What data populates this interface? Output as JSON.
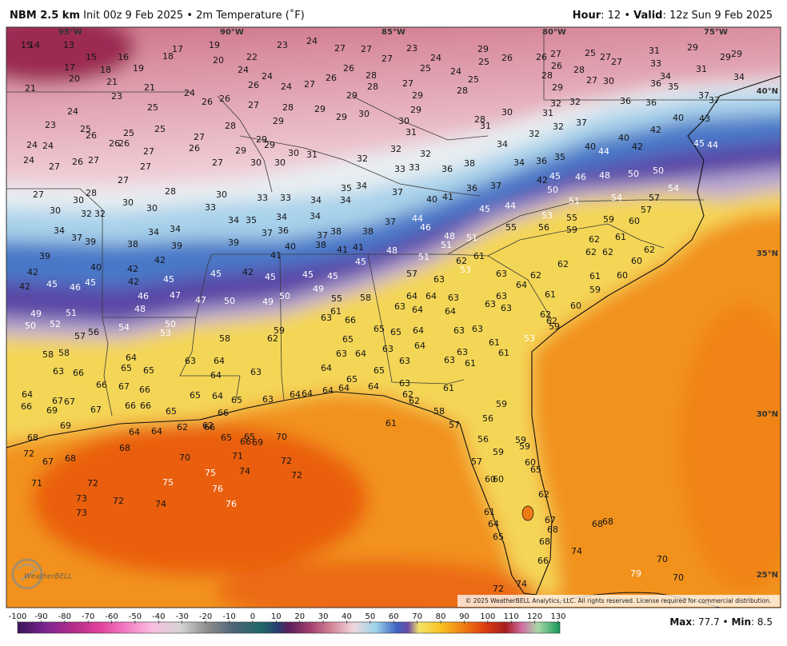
{
  "header": {
    "model": "NBM 2.5 km",
    "init": "Init 00z 9 Feb 2025",
    "separator": "•",
    "product": "2m Temperature (˚F)",
    "hour_label": "Hour",
    "hour": ": 12",
    "valid_label": "Valid",
    "valid": ": 12z Sun 9 Feb 2025"
  },
  "map": {
    "longitude_labels": [
      "95°W",
      "90°W",
      "85°W",
      "80°W",
      "75°W"
    ],
    "latitude_labels": [
      "40°N",
      "35°N",
      "30°N",
      "25°N"
    ],
    "temperatures": [
      15,
      14,
      13,
      15,
      16,
      19,
      18,
      17,
      19,
      20,
      22,
      23,
      24,
      27,
      27,
      27,
      23,
      24,
      25,
      24,
      25,
      29,
      25,
      26,
      26,
      27,
      26,
      25,
      27,
      27,
      31,
      33,
      29,
      29,
      29,
      31,
      17,
      20,
      18,
      21,
      21,
      23,
      25,
      24,
      26,
      26,
      24,
      24,
      26,
      24,
      27,
      26,
      26,
      28,
      28,
      27,
      29,
      28,
      28,
      30,
      28,
      28,
      27,
      30,
      29,
      32,
      32,
      31,
      36,
      36,
      34,
      35,
      36,
      37,
      37,
      34,
      21,
      24,
      23,
      25,
      26,
      26,
      25,
      25,
      26,
      27,
      26,
      27,
      28,
      27,
      28,
      29,
      29,
      29,
      29,
      30,
      30,
      29,
      31,
      31,
      32,
      32,
      37,
      24,
      24,
      24,
      27,
      26,
      27,
      27,
      27,
      29,
      29,
      29,
      30,
      31,
      30,
      30,
      27,
      32,
      32,
      32,
      33,
      33,
      36,
      38,
      34,
      34,
      36,
      35,
      40,
      44,
      40,
      42,
      42,
      40,
      43,
      45,
      44,
      27,
      30,
      28,
      30,
      30,
      28,
      30,
      33,
      33,
      33,
      34,
      35,
      34,
      34,
      37,
      40,
      41,
      36,
      37,
      42,
      45,
      46,
      48,
      50,
      50,
      54,
      57,
      54,
      51,
      50,
      30,
      32,
      32,
      34,
      37,
      39,
      38,
      34,
      39,
      34,
      34,
      35,
      34,
      34,
      38,
      37,
      38,
      37,
      44,
      46,
      48,
      51,
      51,
      45,
      44,
      55,
      53,
      55,
      56,
      59,
      59,
      60,
      57,
      62,
      61,
      62,
      62,
      39,
      40,
      42,
      42,
      39,
      37,
      36,
      40,
      38,
      41,
      41,
      48,
      51,
      45,
      41,
      42,
      42,
      45,
      46,
      45,
      42,
      45,
      45,
      42,
      45,
      45,
      45,
      49,
      50,
      49,
      50,
      47,
      47,
      46,
      48,
      51,
      49,
      50,
      52,
      54,
      50,
      53,
      57,
      63,
      62,
      53,
      61,
      63,
      64,
      62,
      61,
      62,
      61,
      60,
      60,
      62,
      59,
      60,
      57,
      56,
      58,
      58,
      63,
      66,
      64,
      65,
      65,
      63,
      64,
      64,
      63,
      59,
      62,
      58,
      55,
      58,
      61,
      63,
      66,
      65,
      65,
      63,
      64,
      64,
      64,
      63,
      64,
      63,
      63,
      63,
      62,
      62,
      59,
      65,
      63,
      64,
      63,
      64,
      64,
      63,
      63,
      61,
      61,
      53,
      63,
      61,
      63,
      64,
      65,
      65,
      63,
      63,
      64,
      64,
      64,
      64,
      63,
      64,
      62,
      62,
      61,
      58,
      61,
      57,
      56,
      59,
      56,
      59,
      57,
      59,
      59,
      60,
      65,
      60,
      60,
      62,
      61,
      64,
      67,
      68,
      65,
      68,
      74,
      66,
      68,
      68,
      79,
      70,
      70,
      74,
      72,
      64,
      67,
      67,
      66,
      69,
      67,
      69,
      66,
      67,
      66,
      66,
      66,
      65,
      65,
      64,
      65,
      66,
      62,
      62,
      66,
      65,
      65,
      66,
      69,
      70,
      68,
      72,
      67,
      68,
      68,
      64,
      64,
      70,
      71,
      74,
      72,
      72,
      75,
      76,
      76,
      75,
      71,
      72,
      73,
      72,
      74,
      73
    ],
    "copyright": "© 2025 WeatherBELL Analytics, LLC. All rights reserved. License required for commercial distribution.",
    "logo": "WeatherBELL"
  },
  "colorbar": {
    "ticks": [
      -100,
      -90,
      -80,
      -70,
      -60,
      -50,
      -40,
      -30,
      -20,
      -10,
      0,
      10,
      20,
      30,
      40,
      50,
      60,
      70,
      80,
      90,
      100,
      110,
      120,
      130
    ]
  },
  "footer": {
    "max_label": "Max",
    "max": ": 77.7",
    "separator": "•",
    "min_label": "Min",
    "min": ": 8.5"
  }
}
